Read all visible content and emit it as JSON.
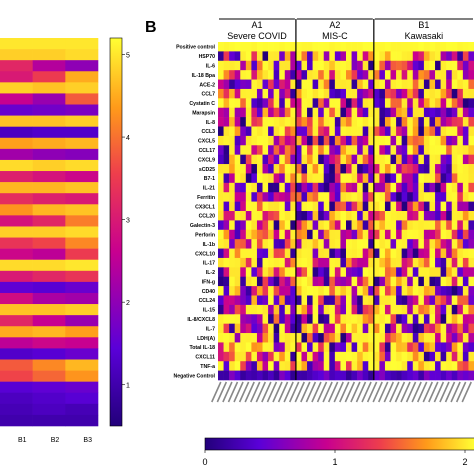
{
  "panels": {
    "b_letter": "B"
  },
  "chart_data": [
    {
      "type": "heatmap",
      "panel": "A (cropped)",
      "title": "",
      "columns": [
        "B1",
        "B2",
        "B3"
      ],
      "colorbar": {
        "ticks": [
          "1",
          "2",
          "3",
          "4",
          "5"
        ],
        "range": [
          0.5,
          5.2
        ]
      },
      "colorscale": [
        "#22007a",
        "#5a00d8",
        "#c8008f",
        "#ee3e4c",
        "#ff9a1a",
        "#ffff33"
      ],
      "values": [
        [
          5.0,
          5.0,
          5.0
        ],
        [
          4.8,
          4.8,
          4.9
        ],
        [
          3.2,
          2.4,
          2.0
        ],
        [
          3.0,
          3.5,
          4.5
        ],
        [
          4.8,
          4.7,
          4.8
        ],
        [
          2.6,
          2.1,
          3.8
        ],
        [
          1.6,
          1.7,
          1.8
        ],
        [
          4.7,
          4.7,
          4.8
        ],
        [
          1.2,
          1.3,
          1.3
        ],
        [
          4.4,
          4.5,
          4.6
        ],
        [
          2.2,
          2.0,
          1.9
        ],
        [
          4.9,
          4.8,
          4.9
        ],
        [
          3.1,
          2.9,
          2.7
        ],
        [
          4.6,
          4.6,
          4.7
        ],
        [
          3.3,
          3.1,
          3.0
        ],
        [
          4.3,
          4.6,
          4.7
        ],
        [
          2.9,
          3.2,
          4.1
        ],
        [
          4.8,
          4.8,
          4.9
        ],
        [
          3.4,
          3.6,
          4.2
        ],
        [
          2.7,
          2.5,
          3.5
        ],
        [
          4.9,
          4.9,
          5.0
        ],
        [
          3.0,
          3.2,
          3.4
        ],
        [
          1.5,
          1.4,
          1.6
        ],
        [
          2.8,
          2.3,
          2.2
        ],
        [
          4.7,
          4.7,
          4.8
        ],
        [
          3.2,
          2.6,
          2.1
        ],
        [
          4.5,
          4.6,
          4.4
        ],
        [
          2.5,
          2.7,
          2.6
        ],
        [
          1.3,
          1.4,
          1.6
        ],
        [
          3.8,
          4.2,
          4.6
        ],
        [
          3.6,
          3.9,
          4.3
        ],
        [
          1.4,
          1.5,
          1.6
        ],
        [
          1.2,
          1.3,
          1.4
        ],
        [
          1.1,
          1.2,
          1.1
        ],
        [
          1.0,
          1.0,
          1.0
        ]
      ]
    },
    {
      "type": "heatmap",
      "panel": "B",
      "groups": [
        {
          "code": "A1",
          "name": "Severe COVID",
          "n_columns": 14
        },
        {
          "code": "A2",
          "name": "MIS-C",
          "n_columns": 14
        },
        {
          "code": "B1",
          "name": "Kawasaki",
          "n_columns": 18
        }
      ],
      "rows": [
        "Positive control",
        "HSP70",
        "IL-6",
        "IL-18 Bpa",
        "ACE-2",
        "CCL7",
        "Cystatin C",
        "Marapsin",
        "IL-8",
        "CCL3",
        "CXCL5",
        "CCL17",
        "CXCL9",
        "sCD25",
        "B7-1",
        "IL-21",
        "Ferritin",
        "CX3CL1",
        "CCL20",
        "Galectin-3",
        "Perforin",
        "IL-1b",
        "CXCL10",
        "IL-17",
        "IL-2",
        "IFN-g",
        "CD40",
        "CCL24",
        "IL-15",
        "IL-8/CXCL8",
        "IL-7",
        "LDH(A)",
        "Total IL-18",
        "CXCL11",
        "TNF-a",
        "Negative Control"
      ],
      "values_note": "Per-patient cell values shown as colour only; range 0–2.",
      "colorbar": {
        "ticks": [
          "0",
          "1",
          "2"
        ],
        "range": [
          0,
          2
        ]
      },
      "colorscale": [
        "#22007a",
        "#5a00d8",
        "#c8008f",
        "#ee3e4c",
        "#ff9a1a",
        "#ffff33"
      ]
    }
  ]
}
